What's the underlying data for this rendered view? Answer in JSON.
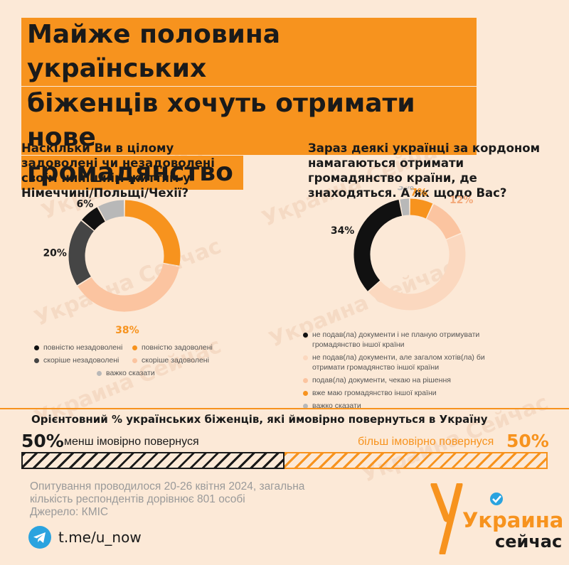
{
  "title": {
    "lines": [
      "Майже половина українських",
      "біженців хочуть отримати нове",
      "громадянство"
    ]
  },
  "watermark": "Украина Сейчас",
  "charts": {
    "left": {
      "question": "Наскільки Ви в цілому задоволені чи незадоволені своїм нинішнім життям у Німеччині/Польщі/Чехії?",
      "legend": [
        "повністю незадоволені",
        "повністю задоволені",
        "скоріше незадоволені",
        "скоріше задоволені",
        "важко сказати"
      ]
    },
    "right": {
      "question": "Зараз деякі українці за кордоном намагаються отримати громадянство країни, де знаходяться. А як щодо Вас?",
      "legend": [
        "не подав(ла) документи і не планую отримувати громадянство іншої країни",
        "не подав(ла) документи, але загалом хотів(ла) би отримати громадянство іншої країни",
        "подав(ла) документи, чекаю на рішення",
        "вже маю громадянство іншої країни",
        "важко сказати"
      ]
    }
  },
  "chart_data": [
    {
      "type": "pie",
      "title": "Наскільки Ви в цілому задоволені чи незадоволені своїм нинішнім життям у Німеччині/Польщі/Чехії?",
      "categories": [
        "повністю задоволені",
        "скоріше задоволені",
        "скоріше незадоволені",
        "повністю незадоволені",
        "важко сказати"
      ],
      "values": [
        28,
        38,
        20,
        6,
        8
      ],
      "labels": [
        "28%",
        "38%",
        "20%",
        "6%",
        "8%"
      ],
      "colors": [
        "#f7931e",
        "#fbc4a0",
        "#454545",
        "#111111",
        "#b8b8b8"
      ],
      "label_colors": [
        "#f7931e",
        "#f7931e",
        "#1a1a1a",
        "#1a1a1a",
        "#b8b8b8"
      ]
    },
    {
      "type": "pie",
      "title": "Зараз деякі українці за кордоном намагаються отримати громадянство країни, де знаходяться. А як щодо Вас?",
      "categories": [
        "вже маю громадянство іншої країни",
        "подав(ла) документи, чекаю на рішення",
        "не подав(ла) документи, але загалом хотів(ла) би отримати громадянство іншої країни",
        "не подав(ла) документи і не планую отримувати громадянство іншої країни",
        "важко сказати"
      ],
      "values": [
        7,
        12,
        45,
        34,
        3
      ],
      "labels": [
        "7%",
        "12%",
        "45%",
        "34%",
        "3%"
      ],
      "colors": [
        "#f7931e",
        "#fbc4a0",
        "#fbd8bf",
        "#111111",
        "#b8b8b8"
      ],
      "label_colors": [
        "#f7931e",
        "#f3a97a",
        "#f3a97a",
        "#1a1a1a",
        "#b8b8b8"
      ]
    },
    {
      "type": "bar",
      "title": "Орієнтовний % українських біженців, які ймовірно повернуться в Україну",
      "categories": [
        "менш імовірно повернуся",
        "більш імовірно повернуся"
      ],
      "values": [
        50,
        50
      ],
      "colors": [
        "#1a1a1a",
        "#f7931e"
      ]
    }
  ],
  "return": {
    "title": "Орієнтовний % українських біженців, які ймовірно повернуться в Україну",
    "left_pct": "50%",
    "left_label": "менш імовірно повернуся",
    "right_pct": "50%",
    "right_label": "більш імовірно повернуся"
  },
  "footnote": {
    "line1": "Опитування проводилося 20-26 квітня 2024, загальна",
    "line2": "кількість респондентів дорівнює 801 особі",
    "line3": "Джерело: КМІС"
  },
  "telegram": {
    "link": "t.me/u_now"
  },
  "logo": {
    "line1": "Украина",
    "line2": "сейчас"
  }
}
